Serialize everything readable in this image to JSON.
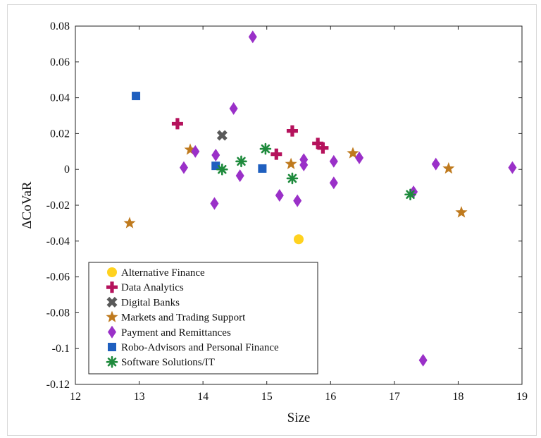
{
  "chart_data": {
    "type": "scatter",
    "xlabel": "Size",
    "ylabel": "ΔCoVaR",
    "xlim": [
      12,
      19
    ],
    "ylim": [
      -0.12,
      0.08
    ],
    "x_ticks": [
      12,
      13,
      14,
      15,
      16,
      17,
      18,
      19
    ],
    "y_ticks": [
      -0.12,
      -0.1,
      -0.08,
      -0.06,
      -0.04,
      -0.02,
      0,
      0.02,
      0.04,
      0.06,
      0.08
    ],
    "y_tick_labels": [
      "-0.12",
      "-0.1",
      "-0.08",
      "-0.06",
      "-0.04",
      "-0.02",
      "0",
      "0.02",
      "0.04",
      "0.06",
      "0.08"
    ],
    "grid": false,
    "legend_position": "bottom-left",
    "series": [
      {
        "name": "Alternative Finance",
        "marker": "circle",
        "color": "#FFD21F",
        "points": [
          [
            15.5,
            -0.039
          ]
        ]
      },
      {
        "name": "Data Analytics",
        "marker": "plus",
        "color": "#B5125C",
        "points": [
          [
            13.6,
            0.0255
          ],
          [
            15.15,
            0.0085
          ],
          [
            15.4,
            0.0215
          ],
          [
            15.8,
            0.0145
          ],
          [
            15.88,
            0.012
          ]
        ]
      },
      {
        "name": "Digital Banks",
        "marker": "x",
        "color": "#595959",
        "points": [
          [
            14.3,
            0.019
          ]
        ]
      },
      {
        "name": "Markets and Trading Support",
        "marker": "star",
        "color": "#BF7A1E",
        "points": [
          [
            12.85,
            -0.03
          ],
          [
            13.8,
            0.011
          ],
          [
            15.38,
            0.003
          ],
          [
            16.35,
            0.009
          ],
          [
            17.85,
            0.0005
          ],
          [
            18.05,
            -0.024
          ]
        ]
      },
      {
        "name": "Payment and Remittances",
        "marker": "diamond",
        "color": "#9A30C8",
        "points": [
          [
            14.78,
            0.074
          ],
          [
            14.48,
            0.034
          ],
          [
            13.88,
            0.01
          ],
          [
            13.7,
            0.001
          ],
          [
            14.2,
            0.008
          ],
          [
            14.18,
            -0.019
          ],
          [
            14.58,
            -0.0035
          ],
          [
            15.2,
            -0.0145
          ],
          [
            15.48,
            -0.0175
          ],
          [
            15.58,
            0.0025
          ],
          [
            15.58,
            0.0055
          ],
          [
            16.05,
            0.0045
          ],
          [
            16.05,
            -0.0075
          ],
          [
            16.45,
            0.0065
          ],
          [
            17.3,
            -0.0125
          ],
          [
            17.65,
            0.003
          ],
          [
            18.85,
            0.001
          ],
          [
            17.45,
            -0.1065
          ]
        ]
      },
      {
        "name": "Robo-Advisors and Personal Finance",
        "marker": "square",
        "color": "#1F5FBF",
        "points": [
          [
            12.95,
            0.041
          ],
          [
            14.2,
            0.002
          ],
          [
            14.93,
            0.0005
          ]
        ]
      },
      {
        "name": "Software Solutions/IT",
        "marker": "asterisk",
        "color": "#1E8A3C",
        "points": [
          [
            14.3,
            0.0
          ],
          [
            14.6,
            0.0045
          ],
          [
            14.98,
            0.0115
          ],
          [
            15.4,
            -0.005
          ],
          [
            17.25,
            -0.014
          ]
        ]
      }
    ]
  }
}
